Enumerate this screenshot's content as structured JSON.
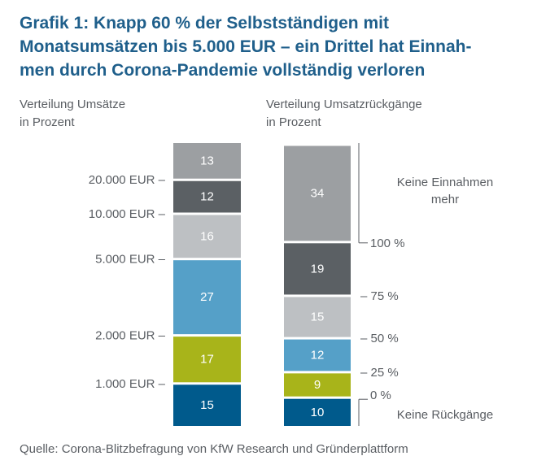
{
  "title": {
    "lines": [
      "Grafik 1: Knapp 60 % der Selbstständigen mit",
      "Monatsumsätzen bis 5.000 EUR – ein Drittel hat Einnah-",
      "men durch Corona-Pandemie vollständig verloren"
    ]
  },
  "source": "Quelle: Corona-Blitzbefragung von KfW Research und Gründerplattform",
  "chart_data": [
    {
      "type": "bar",
      "stacked": true,
      "title": "Verteilung Umsätze",
      "subtitle": "in Prozent",
      "ylim": [
        0,
        100
      ],
      "segments_bottom_to_top": [
        {
          "value": 15,
          "color": "#005a8c"
        },
        {
          "value": 17,
          "color": "#a8b41a"
        },
        {
          "value": 27,
          "color": "#55a0c8"
        },
        {
          "value": 16,
          "color": "#bdc0c3"
        },
        {
          "value": 12,
          "color": "#5b6064"
        },
        {
          "value": 13,
          "color": "#9c9fa2"
        }
      ],
      "boundary_labels_bottom_to_top": [
        "1.000 EUR –",
        "2.000 EUR –",
        "5.000 EUR –",
        "10.000 EUR –",
        "20.000 EUR –"
      ]
    },
    {
      "type": "bar",
      "stacked": true,
      "title": "Verteilung Umsatzrückgänge",
      "subtitle": "in Prozent",
      "ylim": [
        0,
        100
      ],
      "segments_bottom_to_top": [
        {
          "value": 10,
          "color": "#005a8c"
        },
        {
          "value": 9,
          "color": "#a8b41a"
        },
        {
          "value": 12,
          "color": "#55a0c8"
        },
        {
          "value": 15,
          "color": "#bdc0c3"
        },
        {
          "value": 19,
          "color": "#5b6064"
        },
        {
          "value": 34,
          "color": "#9c9fa2"
        }
      ],
      "boundary_labels_bottom_to_top": [
        "0 %",
        "– 25 %",
        "– 50 %",
        "– 75 %",
        "100 %"
      ],
      "annotations": {
        "top": [
          "Keine Einnahmen",
          "mehr"
        ],
        "bottom": "Keine Rückgänge"
      }
    }
  ]
}
